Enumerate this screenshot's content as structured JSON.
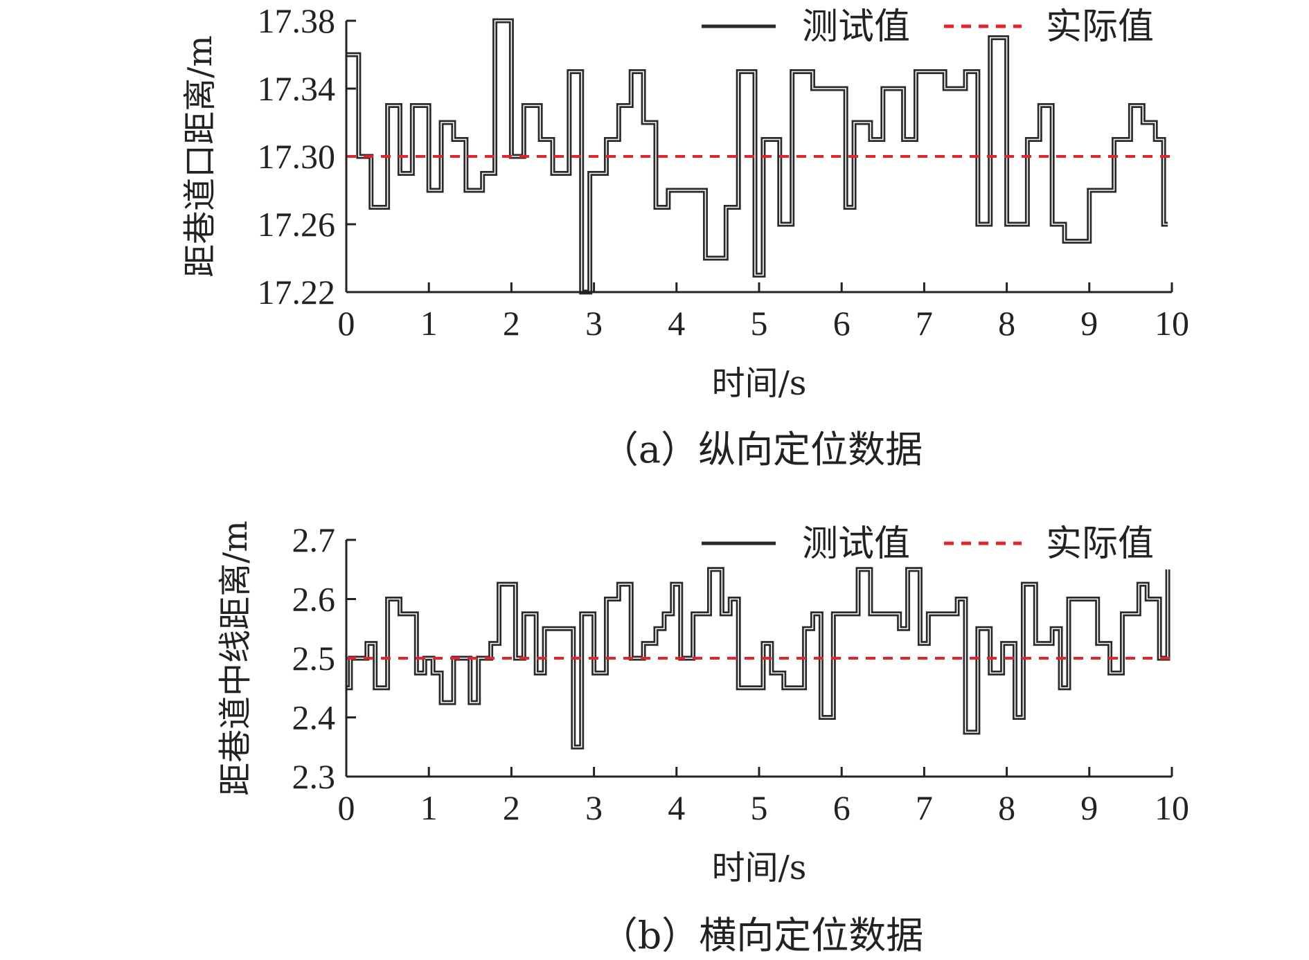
{
  "chart_data": [
    {
      "type": "line",
      "caption": "（a）纵向定位数据",
      "xlabel": "时间/s",
      "ylabel": "距巷道口距离/m",
      "xlim": [
        0,
        10
      ],
      "ylim": [
        17.22,
        17.38
      ],
      "xticks": [
        "0",
        "1",
        "2",
        "3",
        "4",
        "5",
        "6",
        "7",
        "8",
        "9",
        "10"
      ],
      "yticks": [
        "17.22",
        "17.26",
        "17.30",
        "17.34",
        "17.38"
      ],
      "legend_position": "top-right",
      "series": [
        {
          "name": "测试值",
          "color": "#2a2a2a",
          "style": "step",
          "x": [
            0.0,
            0.15,
            0.3,
            0.5,
            0.65,
            0.8,
            1.0,
            1.15,
            1.3,
            1.45,
            1.65,
            1.8,
            2.0,
            2.15,
            2.35,
            2.5,
            2.7,
            2.85,
            2.95,
            3.15,
            3.3,
            3.45,
            3.6,
            3.75,
            3.9,
            4.05,
            4.35,
            4.6,
            4.75,
            4.95,
            5.05,
            5.25,
            5.4,
            5.65,
            6.05,
            6.15,
            6.35,
            6.5,
            6.75,
            6.9,
            7.25,
            7.5,
            7.65,
            7.8,
            8.0,
            8.25,
            8.4,
            8.55,
            8.7,
            9.0,
            9.3,
            9.5,
            9.65,
            9.8,
            9.9
          ],
          "values": [
            17.36,
            17.3,
            17.27,
            17.33,
            17.29,
            17.33,
            17.28,
            17.32,
            17.31,
            17.28,
            17.29,
            17.38,
            17.3,
            17.33,
            17.31,
            17.29,
            17.35,
            17.22,
            17.29,
            17.31,
            17.33,
            17.35,
            17.32,
            17.27,
            17.28,
            17.28,
            17.24,
            17.27,
            17.35,
            17.23,
            17.31,
            17.26,
            17.35,
            17.34,
            17.27,
            17.32,
            17.31,
            17.34,
            17.31,
            17.35,
            17.34,
            17.35,
            17.26,
            17.37,
            17.26,
            17.31,
            17.33,
            17.26,
            17.25,
            17.28,
            17.31,
            17.33,
            17.32,
            17.31,
            17.26
          ]
        },
        {
          "name": "实际值",
          "color": "#e0252b",
          "style": "dashed",
          "x": [
            0,
            10
          ],
          "values": [
            17.3,
            17.3
          ]
        }
      ]
    },
    {
      "type": "line",
      "caption": "（b）横向定位数据",
      "xlabel": "时间/s",
      "ylabel": "距巷道中线距离/m",
      "xlim": [
        0,
        10
      ],
      "ylim": [
        2.3,
        2.7
      ],
      "xticks": [
        "0",
        "1",
        "2",
        "3",
        "4",
        "5",
        "6",
        "7",
        "8",
        "9",
        "10"
      ],
      "yticks": [
        "2.3",
        "2.4",
        "2.5",
        "2.6",
        "2.7"
      ],
      "legend_position": "top-right",
      "series": [
        {
          "name": "测试值",
          "color": "#2a2a2a",
          "style": "step",
          "x": [
            0.0,
            0.05,
            0.25,
            0.35,
            0.5,
            0.65,
            0.85,
            0.95,
            1.05,
            1.15,
            1.3,
            1.5,
            1.6,
            1.75,
            1.85,
            2.05,
            2.15,
            2.3,
            2.4,
            2.55,
            2.75,
            2.85,
            3.0,
            3.15,
            3.3,
            3.45,
            3.6,
            3.75,
            3.85,
            3.95,
            4.05,
            4.2,
            4.4,
            4.55,
            4.65,
            4.75,
            5.05,
            5.15,
            5.3,
            5.55,
            5.65,
            5.75,
            5.9,
            6.05,
            6.2,
            6.35,
            6.7,
            6.8,
            6.95,
            7.05,
            7.4,
            7.5,
            7.65,
            7.8,
            7.95,
            8.1,
            8.2,
            8.35,
            8.55,
            8.65,
            8.75,
            8.95,
            9.1,
            9.25,
            9.4,
            9.6,
            9.7,
            9.85,
            9.95
          ],
          "values": [
            2.45,
            2.5,
            2.525,
            2.45,
            2.6,
            2.575,
            2.475,
            2.5,
            2.475,
            2.425,
            2.5,
            2.425,
            2.5,
            2.525,
            2.625,
            2.5,
            2.575,
            2.475,
            2.55,
            2.55,
            2.35,
            2.575,
            2.475,
            2.6,
            2.625,
            2.5,
            2.525,
            2.55,
            2.575,
            2.625,
            2.5,
            2.575,
            2.65,
            2.575,
            2.6,
            2.45,
            2.525,
            2.475,
            2.45,
            2.55,
            2.575,
            2.4,
            2.575,
            2.575,
            2.65,
            2.575,
            2.55,
            2.65,
            2.525,
            2.575,
            2.6,
            2.375,
            2.55,
            2.475,
            2.525,
            2.4,
            2.625,
            2.525,
            2.55,
            2.45,
            2.6,
            2.6,
            2.525,
            2.475,
            2.575,
            2.625,
            2.6,
            2.5,
            2.65
          ]
        },
        {
          "name": "实际值",
          "color": "#e0252b",
          "style": "dashed",
          "x": [
            0,
            10
          ],
          "values": [
            2.5,
            2.5
          ]
        }
      ]
    }
  ]
}
